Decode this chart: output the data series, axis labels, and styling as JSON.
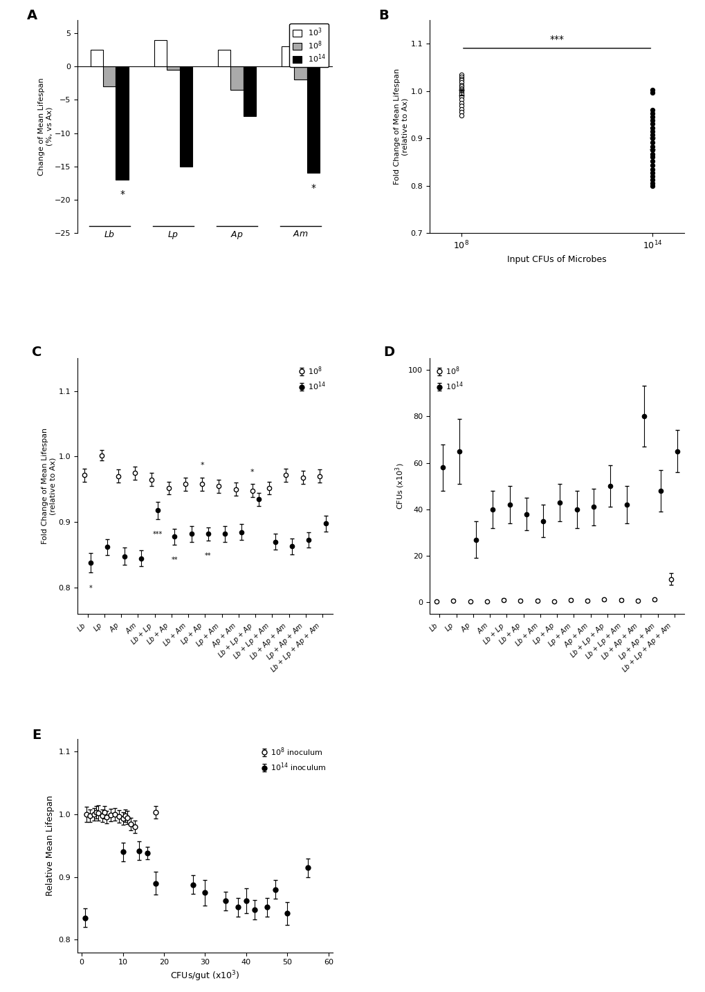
{
  "A": {
    "groups": [
      "Lb",
      "Lp",
      "Ap",
      "Am"
    ],
    "low": [
      2.5,
      4.0,
      2.5,
      3.0
    ],
    "mid": [
      -3.0,
      -0.5,
      -3.5,
      -2.0
    ],
    "high": [
      -17.0,
      -15.0,
      -7.5,
      -16.0
    ],
    "ylabel": "Change of Mean Lifespan\n(%, vs Ax)",
    "ylim": [
      -25,
      7
    ],
    "yticks": [
      -25,
      -20,
      -15,
      -10,
      -5,
      0,
      5
    ],
    "legend_labels": [
      "10$^3$",
      "10$^8$",
      "10$^{14}$"
    ]
  },
  "B": {
    "x_labels": [
      "10$^8$",
      "10$^{14}$"
    ],
    "open_dots": [
      1.035,
      1.03,
      1.025,
      1.022,
      1.018,
      1.013,
      1.01,
      1.005,
      1.002,
      0.999,
      0.996,
      0.993,
      0.988,
      0.982,
      0.975,
      0.968,
      0.962,
      0.955,
      0.948
    ],
    "filled_dots": [
      1.002,
      0.997,
      0.96,
      0.952,
      0.945,
      0.938,
      0.93,
      0.922,
      0.915,
      0.908,
      0.9,
      0.892,
      0.883,
      0.875,
      0.867,
      0.86,
      0.852,
      0.843,
      0.835,
      0.827,
      0.82,
      0.812,
      0.805,
      0.8
    ],
    "ylabel": "Fold Change of Mean Lifespan\n(relative to Ax)",
    "ylim": [
      0.7,
      1.15
    ],
    "yticks": [
      0.7,
      0.8,
      0.9,
      1.0,
      1.1
    ],
    "sig_label": "***"
  },
  "C": {
    "xlabels": [
      "Lb",
      "Lp",
      "Ap",
      "Am",
      "Lb + Lp",
      "Lb + Ap",
      "Lb + Am",
      "Lp + Ap",
      "Lp + Am",
      "Ap + Am",
      "Lb + Lp + Ap",
      "Lb + Lp + Am",
      "Lb + Ap + Am",
      "Lp + Ap + Am",
      "Lb + Lp + Ap + Am"
    ],
    "open_vals": [
      0.972,
      1.002,
      0.97,
      0.975,
      0.965,
      0.952,
      0.958,
      0.958,
      0.955,
      0.95,
      0.948,
      0.952,
      0.972,
      0.968,
      0.97
    ],
    "open_err": [
      0.01,
      0.008,
      0.01,
      0.01,
      0.01,
      0.01,
      0.01,
      0.01,
      0.01,
      0.01,
      0.01,
      0.01,
      0.01,
      0.01,
      0.01
    ],
    "filled_vals": [
      0.838,
      0.862,
      0.848,
      0.845,
      0.918,
      0.878,
      0.882,
      0.882,
      0.882,
      0.885,
      0.935,
      0.87,
      0.863,
      0.873,
      0.898
    ],
    "filled_err": [
      0.015,
      0.012,
      0.013,
      0.012,
      0.013,
      0.012,
      0.012,
      0.01,
      0.012,
      0.012,
      0.01,
      0.012,
      0.012,
      0.012,
      0.012
    ],
    "ylabel": "Fold Change of Mean Lifespan\n(relative to Ax)",
    "ylim": [
      0.76,
      1.15
    ],
    "yticks": [
      0.8,
      0.9,
      1.0,
      1.1
    ],
    "asterisk_open_idx": [
      7,
      10
    ],
    "asterisk_open_lbl": [
      "*",
      "*"
    ],
    "asterisk_filled_idx": [
      0,
      4,
      7,
      5
    ],
    "asterisk_filled_lbl": [
      "*",
      "***",
      "**",
      "**"
    ]
  },
  "D": {
    "xlabels": [
      "Lb",
      "Lp",
      "Ap",
      "Am",
      "Lb + Lp",
      "Lb + Ap",
      "Lb + Am",
      "Lp + Ap",
      "Lp + Am",
      "Ap + Am",
      "Lb + Lp + Ap",
      "Lb + Lp + Am",
      "Lb + Ap + Am",
      "Lp + Ap + Am",
      "Lb + Lp + Ap + Am"
    ],
    "open_vals": [
      0.5,
      0.8,
      0.5,
      0.5,
      1.0,
      0.8,
      0.8,
      0.5,
      1.0,
      0.8,
      1.2,
      1.0,
      0.8,
      1.2,
      10.0
    ],
    "open_err": [
      0.3,
      0.5,
      0.3,
      0.3,
      0.5,
      0.5,
      0.5,
      0.3,
      0.5,
      0.5,
      0.5,
      0.5,
      0.5,
      0.5,
      2.5
    ],
    "filled_vals": [
      58.0,
      65.0,
      27.0,
      40.0,
      42.0,
      38.0,
      35.0,
      43.0,
      40.0,
      41.0,
      50.0,
      42.0,
      80.0,
      48.0,
      65.0
    ],
    "filled_err": [
      10.0,
      14.0,
      8.0,
      8.0,
      8.0,
      7.0,
      7.0,
      8.0,
      8.0,
      8.0,
      9.0,
      8.0,
      13.0,
      9.0,
      9.0
    ],
    "ylabel": "CFUs (x10$^3$)",
    "ylim": [
      -5,
      105
    ],
    "yticks": [
      0,
      20,
      40,
      60,
      80,
      100
    ]
  },
  "E": {
    "open_x": [
      1.2,
      2.0,
      3.0,
      3.5,
      4.0,
      5.0,
      5.5,
      6.0,
      7.0,
      8.0,
      9.0,
      10.0,
      10.5,
      11.0,
      12.0,
      13.0,
      18.0
    ],
    "open_y": [
      1.0,
      0.998,
      1.0,
      1.003,
      1.002,
      0.998,
      1.003,
      0.996,
      0.999,
      1.0,
      0.997,
      0.993,
      0.998,
      0.995,
      0.985,
      0.98,
      1.003
    ],
    "open_err": [
      0.012,
      0.01,
      0.01,
      0.01,
      0.012,
      0.01,
      0.01,
      0.01,
      0.01,
      0.01,
      0.01,
      0.01,
      0.01,
      0.01,
      0.01,
      0.01,
      0.01
    ],
    "filled_x": [
      0.8,
      10.0,
      14.0,
      16.0,
      18.0,
      27.0,
      30.0,
      35.0,
      38.0,
      40.0,
      42.0,
      45.0,
      47.0,
      50.0,
      55.0
    ],
    "filled_y": [
      0.835,
      0.94,
      0.942,
      0.938,
      0.89,
      0.888,
      0.875,
      0.862,
      0.852,
      0.862,
      0.848,
      0.852,
      0.88,
      0.842,
      0.915
    ],
    "filled_err": [
      0.015,
      0.015,
      0.015,
      0.01,
      0.018,
      0.015,
      0.02,
      0.015,
      0.015,
      0.02,
      0.015,
      0.015,
      0.015,
      0.018,
      0.015
    ],
    "xlabel": "CFUs/gut (x10$^3$)",
    "ylabel": "Relative Mean Lifespan",
    "xlim": [
      -1,
      61
    ],
    "ylim": [
      0.78,
      1.12
    ],
    "yticks": [
      0.8,
      0.9,
      1.0,
      1.1
    ],
    "xticks": [
      0,
      10,
      20,
      30,
      40,
      50,
      60
    ]
  }
}
